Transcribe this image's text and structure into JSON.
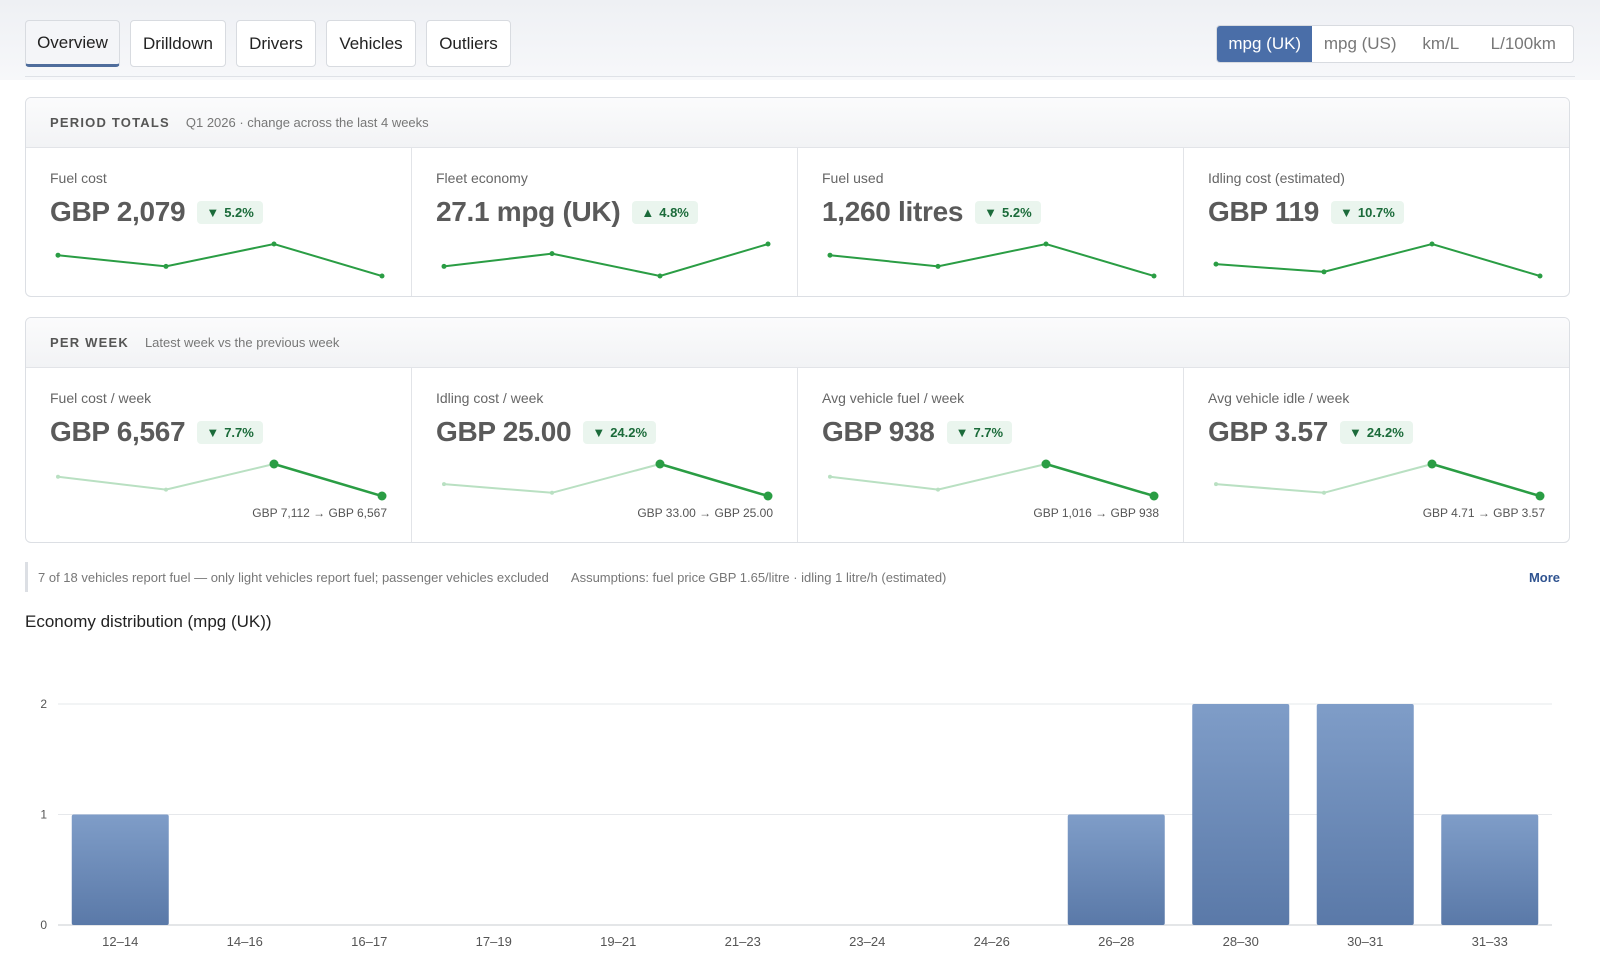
{
  "tabs": [
    {
      "label": "Overview",
      "active": true
    },
    {
      "label": "Drilldown",
      "active": false
    },
    {
      "label": "Drivers",
      "active": false
    },
    {
      "label": "Vehicles",
      "active": false
    },
    {
      "label": "Outliers",
      "active": false
    }
  ],
  "units": [
    {
      "label": "mpg (UK)",
      "active": true
    },
    {
      "label": "mpg (US)",
      "active": false
    },
    {
      "label": "km/L",
      "active": false
    },
    {
      "label": "L/100km",
      "active": false
    }
  ],
  "period": {
    "title": "PERIOD TOTALS",
    "subtitle": "Q1 2026 · change across the last 4 weeks",
    "cards": [
      {
        "label": "Fuel cost",
        "value": "GBP 2,079",
        "direction": "down",
        "change": "5.2%",
        "trend": [
          0.65,
          0.3,
          1.0,
          0.0
        ]
      },
      {
        "label": "Fleet economy",
        "value": "27.1 mpg (UK)",
        "direction": "up",
        "change": "4.8%",
        "trend": [
          0.3,
          0.7,
          0.0,
          1.0
        ]
      },
      {
        "label": "Fuel used",
        "value": "1,260 litres",
        "direction": "down",
        "change": "5.2%",
        "trend": [
          0.65,
          0.3,
          1.0,
          0.0
        ]
      },
      {
        "label": "Idling cost (estimated)",
        "value": "GBP 119",
        "direction": "down",
        "change": "10.7%",
        "trend": [
          0.37,
          0.13,
          1.0,
          0.0
        ]
      }
    ]
  },
  "weekly": {
    "title": "PER WEEK",
    "subtitle": "Latest week vs the previous week",
    "cards": [
      {
        "label": "Fuel cost / week",
        "value": "GBP 6,567",
        "direction": "down",
        "change": "7.7%",
        "comparison": "GBP 7,112 → GBP 6,567",
        "trend": [
          0.6,
          0.2,
          1.0,
          0.0
        ]
      },
      {
        "label": "Idling cost / week",
        "value": "GBP 25.00",
        "direction": "down",
        "change": "24.2%",
        "comparison": "GBP 33.00 → GBP 25.00",
        "trend": [
          0.37,
          0.1,
          1.0,
          0.0
        ]
      },
      {
        "label": "Avg vehicle fuel / week",
        "value": "GBP 938",
        "direction": "down",
        "change": "7.7%",
        "comparison": "GBP 1,016 → GBP 938",
        "trend": [
          0.6,
          0.2,
          1.0,
          0.0
        ]
      },
      {
        "label": "Avg vehicle idle / week",
        "value": "GBP 3.57",
        "direction": "down",
        "change": "24.2%",
        "comparison": "GBP 4.71 → GBP 3.57",
        "trend": [
          0.37,
          0.1,
          1.0,
          0.0
        ]
      }
    ]
  },
  "notes": {
    "coverage": "7 of 18 vehicles report fuel — only light vehicles report fuel; passenger vehicles excluded",
    "assumptions": "Assumptions: fuel price GBP 1.65/litre · idling 1 litre/h (estimated)",
    "more": "More"
  },
  "colors": {
    "accent": "#4a6ea8",
    "trend_good": "#2a9d44",
    "bar_top": "#7f9dc8",
    "bar_bottom": "#5a79a8"
  },
  "chart_data": {
    "type": "bar",
    "title": "Economy distribution (mpg (UK))",
    "categories": [
      "12–14",
      "14–16",
      "16–17",
      "17–19",
      "19–21",
      "21–23",
      "23–24",
      "24–26",
      "26–28",
      "28–30",
      "30–31",
      "31–33"
    ],
    "values": [
      1,
      0,
      0,
      0,
      0,
      0,
      0,
      0,
      1,
      2,
      2,
      1
    ],
    "ylim": [
      0,
      2
    ],
    "yticks": [
      0,
      1,
      2
    ],
    "grid": true
  }
}
